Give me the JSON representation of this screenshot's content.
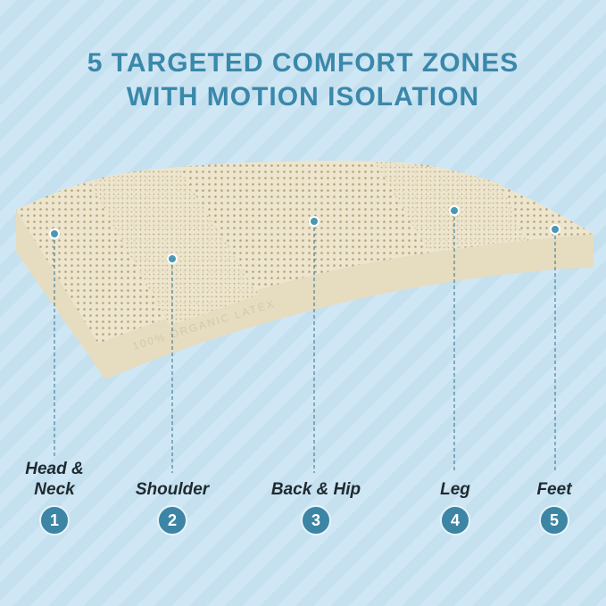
{
  "title": {
    "line1": "5 TARGETED COMFORT ZONES",
    "line2": "WITH MOTION ISOLATION"
  },
  "product_side_text": "100% ORGANIC LATEX",
  "zones": [
    {
      "label": "Head &",
      "label2": "Neck",
      "number": "1"
    },
    {
      "label": "Shoulder",
      "number": "2"
    },
    {
      "label": "Back & Hip",
      "number": "3"
    },
    {
      "label": "Leg",
      "number": "4"
    },
    {
      "label": "Feet",
      "number": "5"
    }
  ],
  "colors": {
    "accent": "#3c85a5",
    "title": "#3a88aa",
    "background": "#cde6f3",
    "latex": "#ece4cc"
  }
}
